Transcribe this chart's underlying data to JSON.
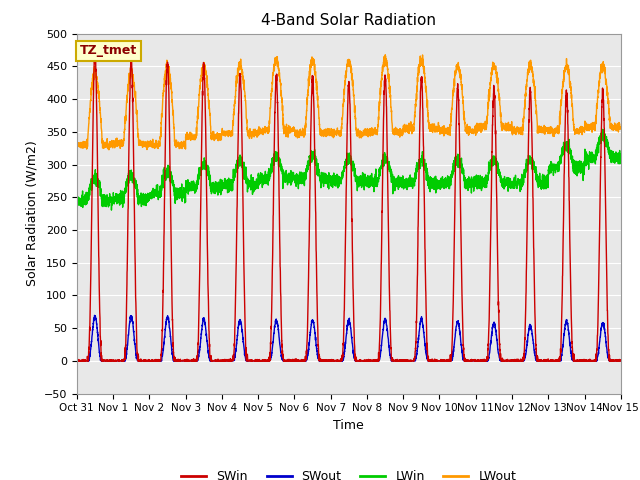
{
  "title": "4-Band Solar Radiation",
  "xlabel": "Time",
  "ylabel": "Solar Radiation (W/m2)",
  "ylim": [
    -50,
    500
  ],
  "xlim_days": [
    0,
    15
  ],
  "annotation": "TZ_tmet",
  "legend_entries": [
    "SWin",
    "SWout",
    "LWin",
    "LWout"
  ],
  "colors": {
    "SWin": "#cc0000",
    "SWout": "#0000cc",
    "LWin": "#00cc00",
    "LWout": "#ff9900"
  },
  "xtick_positions": [
    0,
    1,
    2,
    3,
    4,
    5,
    6,
    7,
    8,
    9,
    10,
    11,
    12,
    13,
    14,
    15
  ],
  "xtick_labels": [
    "Oct 31",
    "Nov 1",
    "Nov 2",
    "Nov 3",
    "Nov 4",
    "Nov 5",
    "Nov 6",
    "Nov 7",
    "Nov 8",
    "Nov 9",
    "Nov 10",
    "Nov 11",
    "Nov 12",
    "Nov 13",
    "Nov 14",
    "Nov 15"
  ],
  "ytick_positions": [
    -50,
    0,
    50,
    100,
    150,
    200,
    250,
    300,
    350,
    400,
    450,
    500
  ],
  "grid_color": "#ffffff",
  "bg_color": "#e8e8e8",
  "fig_bg_color": "#ffffff",
  "linewidth": 1.0,
  "SWin_peaks": [
    470,
    462,
    457,
    450,
    437,
    433,
    430,
    426,
    436,
    433,
    417,
    413,
    413,
    410,
    407
  ],
  "SWout_peaks": [
    68,
    68,
    67,
    63,
    62,
    62,
    62,
    62,
    63,
    63,
    60,
    58,
    53,
    60,
    58
  ],
  "LWin_base": [
    245,
    248,
    255,
    265,
    270,
    278,
    278,
    275,
    273,
    272,
    272,
    272,
    272,
    295,
    310
  ],
  "LWout_night": [
    330,
    332,
    330,
    342,
    348,
    352,
    348,
    348,
    350,
    355,
    352,
    357,
    352,
    352,
    357
  ],
  "LWout_day_peak": [
    440,
    440,
    450,
    450,
    452,
    460,
    457,
    458,
    460,
    460,
    450,
    452,
    452,
    450,
    450
  ]
}
